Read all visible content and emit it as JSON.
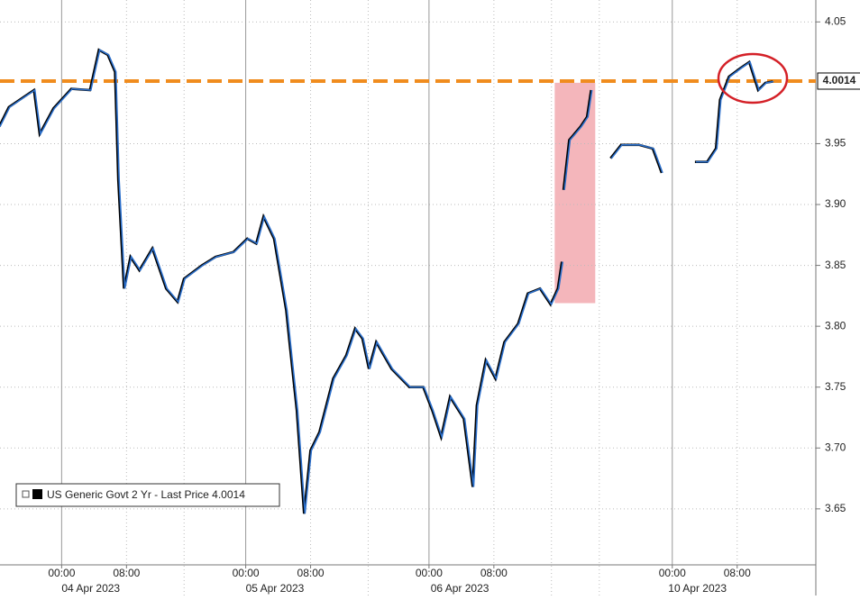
{
  "chart_data": {
    "type": "line",
    "x": [
      -7.6,
      -6.4,
      -4.2,
      -3.3,
      -2.6,
      -0.9,
      1.3,
      3.6,
      4.7,
      5.8,
      6.7,
      7.1,
      7.8,
      8.6,
      9.7,
      11.3,
      13.0,
      14.4,
      15.2,
      17.4,
      19.1,
      21.3,
      23.0,
      24.1,
      25.0,
      26.3,
      27.8,
      28.2,
      29.1,
      30.0,
      30.8,
      31.9,
      33.6,
      35.2,
      36.3,
      37.2,
      38.0,
      38.9,
      40.8,
      43.0,
      44.7,
      45.8,
      46.9,
      48.0,
      49.7,
      50.8,
      51.3,
      52.4,
      53.6,
      54.7,
      56.4,
      57.6,
      59.1,
      60.4,
      61.3,
      61.8,
      61.9,
      62.0,
      62.7,
      64.1,
      64.9,
      65.4,
      66.0,
      67.8,
      69.1,
      71.3,
      73.0,
      74.1,
      76.0,
      78.2,
      79.7,
      80.8,
      81.3,
      82.4,
      83.8,
      84.9,
      86.0,
      86.9,
      87.8
    ],
    "series": [
      {
        "name": "US Generic Govt 2 Yr - Last Price 4.0014",
        "color": "#2b6fcb",
        "values": [
          3.964,
          3.98,
          3.99,
          3.994,
          3.958,
          3.979,
          3.995,
          3.994,
          4.027,
          4.023,
          4.009,
          3.92,
          3.831,
          3.857,
          3.846,
          3.864,
          3.831,
          3.82,
          3.839,
          3.85,
          3.857,
          3.861,
          3.872,
          3.868,
          3.89,
          3.872,
          3.813,
          3.787,
          3.731,
          3.646,
          3.698,
          3.713,
          3.757,
          3.776,
          3.798,
          3.79,
          3.765,
          3.787,
          3.765,
          3.75,
          3.75,
          3.731,
          3.709,
          3.742,
          3.724,
          3.668,
          3.735,
          3.772,
          3.757,
          3.787,
          3.802,
          3.827,
          3.831,
          3.818,
          3.831,
          3.853,
          null,
          3.912,
          3.953,
          3.964,
          3.972,
          3.994,
          null,
          3.938,
          3.949,
          3.949,
          3.946,
          3.926,
          null,
          3.935,
          3.935,
          3.946,
          3.986,
          4.005,
          4.012,
          4.017,
          3.994,
          4.0,
          4.001
        ]
      }
    ],
    "xlim": [
      -7.6,
      93
    ],
    "xticks": [
      {
        "value": 0,
        "label": "00:00"
      },
      {
        "value": 8,
        "label": "08:00"
      },
      {
        "value": 22.7,
        "label": "00:00"
      },
      {
        "value": 30.7,
        "label": "08:00"
      },
      {
        "value": 45.3,
        "label": "00:00"
      },
      {
        "value": 53.3,
        "label": "08:00"
      },
      {
        "value": 75.3,
        "label": "00:00"
      },
      {
        "value": 83.3,
        "label": "08:00"
      }
    ],
    "date_labels": [
      {
        "value": 3.6,
        "label": "04 Apr 2023"
      },
      {
        "value": 26.3,
        "label": "05 Apr 2023"
      },
      {
        "value": 49.1,
        "label": "06 Apr 2023"
      },
      {
        "value": 78.4,
        "label": "10 Apr 2023"
      }
    ],
    "day_breaks": [
      15.1,
      37.8,
      60.4,
      66.3
    ],
    "ylim": [
      3.604,
      4.068
    ],
    "yticks": [
      3.65,
      {
        "value": 3.7,
        "label": "3.70"
      },
      3.75,
      {
        "value": 3.8,
        "label": "3.80"
      },
      3.85,
      {
        "value": 3.9,
        "label": "3.90"
      },
      3.95,
      4.05
    ],
    "last_price": 4.0014,
    "last_price_color": "#f08c1e",
    "highlight": {
      "xlim": [
        60.8,
        65.8
      ],
      "ylim": [
        3.819,
        4.0
      ],
      "color": "#f4b6bb"
    },
    "grid": true
  }
}
